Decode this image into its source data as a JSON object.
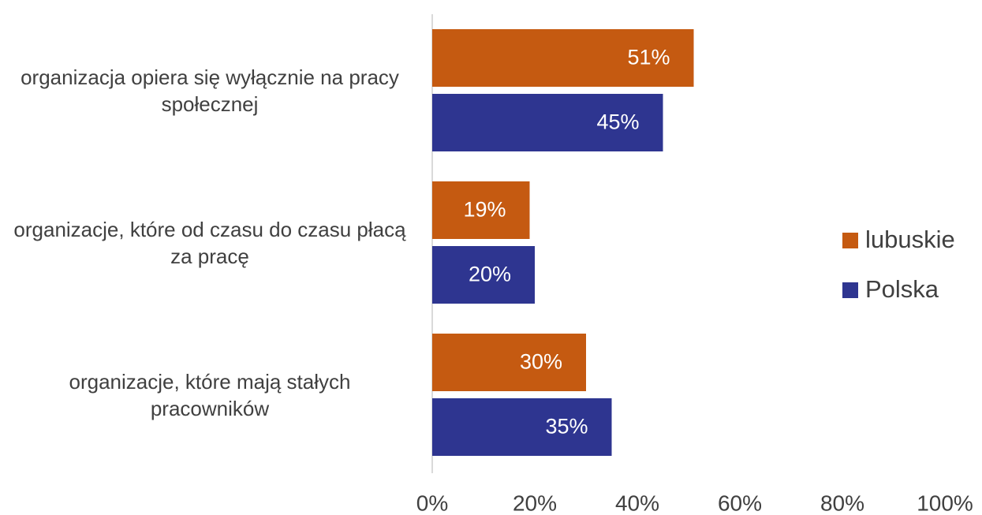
{
  "chart_data": {
    "type": "bar",
    "orientation": "horizontal",
    "categories": [
      "organizacja opiera się wyłącznie na pracy społecznej",
      "organizacje, które od czasu do czasu płacą za pracę",
      "organizacje, które mają stałych pracowników"
    ],
    "series": [
      {
        "name": "lubuskie",
        "color": "#c55a11",
        "values": [
          51,
          19,
          30
        ],
        "value_labels": [
          "51%",
          "19%",
          "30%"
        ]
      },
      {
        "name": "Polska",
        "color": "#2e3590",
        "values": [
          45,
          20,
          35
        ],
        "value_labels": [
          "45%",
          "20%",
          "35%"
        ]
      }
    ],
    "xlim": [
      0,
      100
    ],
    "xticks": [
      {
        "value": 0,
        "label": "0%"
      },
      {
        "value": 20,
        "label": "20%"
      },
      {
        "value": 40,
        "label": "40%"
      },
      {
        "value": 60,
        "label": "60%"
      },
      {
        "value": 80,
        "label": "80%"
      },
      {
        "value": 100,
        "label": "100%"
      }
    ],
    "legend": "right"
  }
}
